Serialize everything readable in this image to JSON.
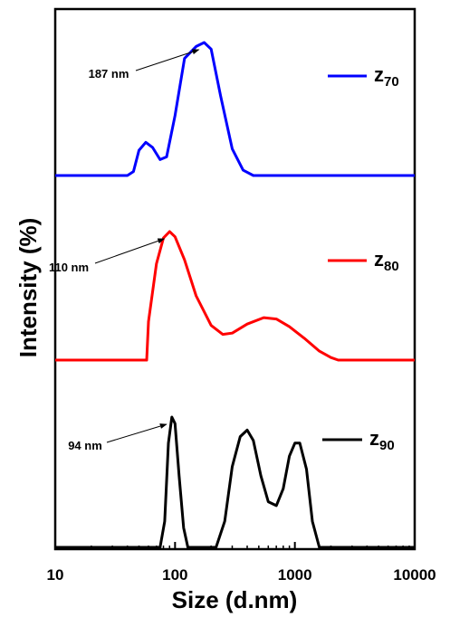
{
  "chart_data": {
    "type": "line",
    "xlabel": "Size (d.nm)",
    "ylabel": "Intensity (%)",
    "x_scale": "log",
    "xlim": [
      10,
      10000
    ],
    "x_ticks": [
      10,
      100,
      1000,
      10000
    ],
    "x_tick_labels": [
      "10",
      "100",
      "1000",
      "10000"
    ],
    "grid": false,
    "legend_placement": "right, next to each curve",
    "series": [
      {
        "name": "z",
        "name_subscript": "70",
        "color": "#0000ff",
        "x": [
          10,
          40,
          45,
          50,
          57,
          65,
          75,
          85,
          100,
          120,
          150,
          175,
          200,
          240,
          300,
          370,
          450,
          10000
        ],
        "y": [
          0,
          0,
          3,
          19,
          25,
          21,
          12,
          14,
          45,
          88,
          97,
          100,
          95,
          60,
          20,
          4,
          0,
          0
        ],
        "annotation": "187 nm",
        "annotation_x": 187
      },
      {
        "name": "z",
        "name_subscript": "80",
        "color": "#ff0000",
        "x": [
          10,
          58,
          60,
          70,
          80,
          90,
          100,
          120,
          150,
          200,
          250,
          300,
          400,
          550,
          700,
          900,
          1200,
          1600,
          2000,
          2300,
          10000
        ],
        "y": [
          0,
          0,
          30,
          75,
          95,
          100,
          96,
          78,
          50,
          27,
          20,
          21,
          28,
          33,
          32,
          26,
          17,
          7,
          2,
          0,
          0
        ],
        "annotation": "110 nm",
        "annotation_x": 110
      },
      {
        "name": "z",
        "name_subscript": "90",
        "color": "#000000",
        "x": [
          10,
          75,
          82,
          88,
          94,
          100,
          108,
          118,
          128,
          220,
          260,
          300,
          350,
          400,
          450,
          520,
          600,
          700,
          800,
          900,
          1000,
          1100,
          1250,
          1400,
          1600,
          10000
        ],
        "y": [
          0,
          0,
          20,
          80,
          100,
          95,
          55,
          15,
          0,
          0,
          20,
          62,
          85,
          90,
          82,
          55,
          35,
          32,
          45,
          70,
          80,
          80,
          60,
          20,
          0,
          0
        ],
        "annotation": "94 nm",
        "annotation_x": 94
      }
    ]
  }
}
